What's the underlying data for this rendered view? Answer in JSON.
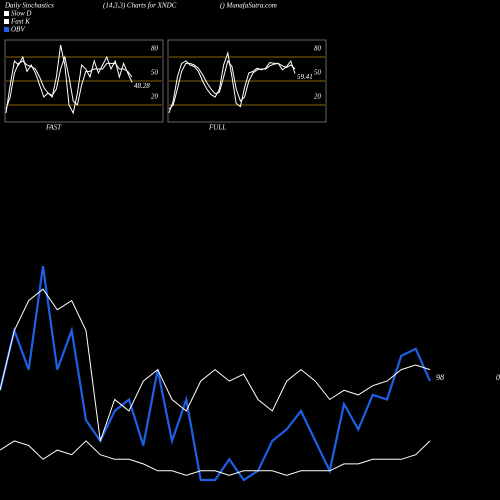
{
  "header": {
    "title": "Daily Stochastics",
    "subtitle": "(14,3,3) Charts for XNDC",
    "site": "() MunafaSutra.com"
  },
  "chart_data": [
    {
      "type": "line",
      "title": "FAST",
      "ylim": [
        0,
        100
      ],
      "yticks": [
        20,
        50,
        80
      ],
      "grid_color": "#b8860b",
      "series": [
        {
          "name": "Fast K",
          "color": "#ffffff",
          "values": [
            10,
            45,
            75,
            70,
            80,
            62,
            70,
            60,
            45,
            30,
            35,
            30,
            55,
            95,
            70,
            20,
            10,
            35,
            70,
            65,
            55,
            75,
            60,
            70,
            80,
            65,
            75,
            55,
            72,
            60,
            48.28
          ]
        },
        {
          "name": "Slow D",
          "color": "#ffffff",
          "values": [
            15,
            30,
            60,
            72,
            75,
            70,
            68,
            65,
            55,
            42,
            35,
            32,
            40,
            65,
            80,
            55,
            25,
            20,
            45,
            62,
            62,
            65,
            65,
            65,
            72,
            72,
            72,
            65,
            65,
            62,
            55
          ]
        }
      ]
    },
    {
      "type": "line",
      "title": "FULL",
      "ylim": [
        0,
        100
      ],
      "yticks": [
        20,
        50,
        80
      ],
      "grid_color": "#b8860b",
      "series": [
        {
          "color": "#ffffff",
          "values": [
            10,
            25,
            55,
            72,
            75,
            70,
            68,
            62,
            50,
            40,
            33,
            30,
            40,
            70,
            85,
            55,
            22,
            18,
            42,
            60,
            62,
            66,
            64,
            66,
            73,
            72,
            72,
            64,
            68,
            75,
            59.41
          ]
        },
        {
          "color": "#ffffff",
          "values": [
            15,
            20,
            40,
            62,
            72,
            72,
            70,
            66,
            58,
            48,
            40,
            34,
            36,
            55,
            75,
            68,
            40,
            25,
            30,
            50,
            60,
            64,
            65,
            65,
            69,
            71,
            72,
            69,
            67,
            70,
            65
          ]
        }
      ]
    },
    {
      "type": "line",
      "ylim": [
        0,
        100
      ],
      "annotations": [
        "98",
        "0"
      ],
      "series": [
        {
          "name": "OBV",
          "color": "#1e5fe6",
          "values": [
            39,
            65,
            48,
            93,
            48,
            65,
            26,
            17,
            30,
            35,
            15,
            48,
            17,
            35,
            0,
            0,
            9,
            0,
            4,
            17,
            22,
            30,
            17,
            4,
            33,
            22,
            37,
            35,
            54,
            57,
            43
          ]
        },
        {
          "color": "#ffffff",
          "values": [
            39,
            65,
            78,
            83,
            74,
            78,
            65,
            17,
            35,
            30,
            43,
            48,
            35,
            30,
            43,
            48,
            43,
            46,
            35,
            30,
            43,
            48,
            43,
            35,
            39,
            37,
            41,
            43,
            48,
            50,
            48
          ]
        },
        {
          "color": "#ffffff",
          "values": [
            13,
            17,
            15,
            9,
            13,
            11,
            17,
            11,
            9,
            9,
            7,
            4,
            4,
            2,
            4,
            4,
            2,
            4,
            4,
            4,
            2,
            4,
            4,
            4,
            7,
            7,
            9,
            9,
            9,
            11,
            17
          ]
        }
      ]
    }
  ]
}
